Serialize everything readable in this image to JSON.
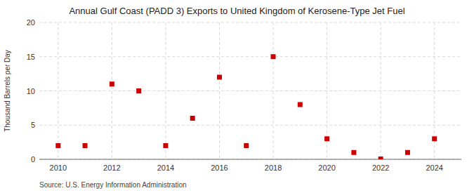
{
  "chart_data": {
    "type": "scatter",
    "title": "Annual Gulf Coast (PADD 3) Exports to United Kingdom of Kerosene-Type Jet Fuel",
    "ylabel": "Thousand Barrels per Day",
    "source": "Source: U.S. Energy Information Administration",
    "x": [
      2010,
      2011,
      2012,
      2013,
      2014,
      2015,
      2016,
      2017,
      2018,
      2019,
      2020,
      2021,
      2022,
      2023,
      2024
    ],
    "values": [
      2.0,
      2.0,
      11.0,
      10.0,
      2.0,
      6.0,
      12.0,
      2.0,
      15.0,
      8.0,
      3.0,
      1.0,
      0.05,
      1.0,
      3.0
    ],
    "color": "#cc0000",
    "marker": "square",
    "xlim": [
      2009.3,
      2025.0
    ],
    "xticks": [
      2010,
      2012,
      2014,
      2016,
      2018,
      2020,
      2022,
      2024
    ],
    "ylim": [
      0,
      20
    ],
    "yticks": [
      0,
      5,
      10,
      15,
      20
    ],
    "grid": true
  }
}
